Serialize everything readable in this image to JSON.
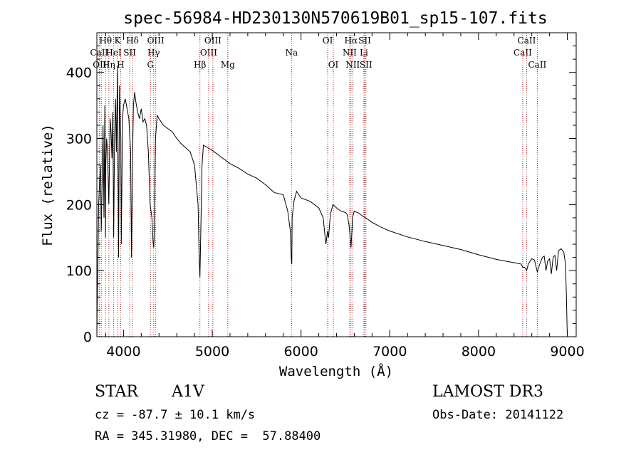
{
  "chart_data": {
    "type": "line",
    "title": "spec-56984-HD230130N570619B01_sp15-107.fits",
    "xlabel": "Wavelength (Å)",
    "ylabel": "Flux (relative)",
    "xlim": [
      3700,
      9100
    ],
    "ylim": [
      0,
      460
    ],
    "x_ticks": [
      4000,
      5000,
      6000,
      7000,
      8000,
      9000
    ],
    "y_ticks": [
      0,
      100,
      200,
      300,
      400
    ],
    "grid": false,
    "series": [
      {
        "name": "spectrum",
        "x": [
          3700,
          3705,
          3710,
          3715,
          3720,
          3730,
          3740,
          3750,
          3760,
          3770,
          3780,
          3790,
          3797,
          3800,
          3810,
          3820,
          3835,
          3850,
          3860,
          3870,
          3880,
          3889,
          3900,
          3910,
          3920,
          3933,
          3945,
          3955,
          3960,
          3970,
          3975,
          3990,
          4000,
          4020,
          4040,
          4060,
          4080,
          4090,
          4101,
          4112,
          4125,
          4140,
          4160,
          4180,
          4200,
          4220,
          4240,
          4260,
          4280,
          4300,
          4320,
          4335,
          4340,
          4345,
          4360,
          4380,
          4400,
          4450,
          4500,
          4550,
          4600,
          4650,
          4700,
          4750,
          4800,
          4840,
          4852,
          4861,
          4870,
          4885,
          4900,
          4950,
          5000,
          5100,
          5200,
          5300,
          5400,
          5500,
          5600,
          5700,
          5800,
          5850,
          5880,
          5890,
          5896,
          5900,
          5920,
          5950,
          6000,
          6100,
          6200,
          6250,
          6280,
          6300,
          6310,
          6330,
          6360,
          6400,
          6450,
          6500,
          6520,
          6540,
          6555,
          6563,
          6570,
          6580,
          6600,
          6650,
          6700,
          6750,
          6800,
          6900,
          7000,
          7200,
          7400,
          7600,
          7800,
          8000,
          8200,
          8400,
          8480,
          8498,
          8520,
          8542,
          8560,
          8600,
          8630,
          8662,
          8690,
          8720,
          8740,
          8760,
          8780,
          8800,
          8820,
          8840,
          8860,
          8880,
          8900,
          8930,
          8960,
          8980,
          8990,
          9000
        ],
        "values": [
          0,
          60,
          100,
          150,
          200,
          230,
          260,
          160,
          240,
          320,
          180,
          350,
          150,
          260,
          300,
          280,
          200,
          330,
          310,
          270,
          340,
          150,
          300,
          360,
          280,
          410,
          120,
          380,
          350,
          300,
          140,
          330,
          350,
          360,
          345,
          330,
          280,
          120,
          260,
          350,
          370,
          355,
          340,
          330,
          345,
          325,
          330,
          320,
          280,
          200,
          180,
          140,
          135,
          150,
          300,
          335,
          330,
          320,
          315,
          310,
          300,
          292,
          286,
          280,
          260,
          200,
          120,
          90,
          150,
          260,
          290,
          286,
          282,
          272,
          262,
          255,
          246,
          240,
          230,
          218,
          215,
          190,
          160,
          120,
          110,
          180,
          205,
          220,
          210,
          205,
          195,
          180,
          140,
          160,
          150,
          185,
          200,
          195,
          190,
          188,
          185,
          170,
          150,
          135,
          150,
          180,
          190,
          187,
          182,
          178,
          173,
          166,
          160,
          151,
          144,
          138,
          132,
          124,
          117,
          112,
          110,
          105,
          105,
          100,
          110,
          118,
          116,
          98,
          110,
          120,
          122,
          100,
          115,
          118,
          95,
          120,
          123,
          100,
          130,
          133,
          128,
          110,
          60,
          0
        ]
      }
    ],
    "line_markers": [
      {
        "label": "Hθ",
        "x": 3798,
        "row": 0
      },
      {
        "label": "K",
        "x": 3933,
        "row": 0
      },
      {
        "label": "Hδ",
        "x": 4101,
        "row": 0
      },
      {
        "label": "OIII",
        "x": 4363,
        "row": 0
      },
      {
        "label": "OIII",
        "x": 5007,
        "row": 0
      },
      {
        "label": "OI",
        "x": 6300,
        "row": 0
      },
      {
        "label": "Hα",
        "x": 6563,
        "row": 0
      },
      {
        "label": "SII",
        "x": 6717,
        "row": 0
      },
      {
        "label": "CaII",
        "x": 8542,
        "row": 0
      },
      {
        "label": "CaII",
        "x": 3727,
        "row": 1
      },
      {
        "label": "HeI",
        "x": 3889,
        "row": 1
      },
      {
        "label": "SII",
        "x": 4070,
        "row": 1
      },
      {
        "label": "Hγ",
        "x": 4340,
        "row": 1
      },
      {
        "label": "OIII",
        "x": 4959,
        "row": 1
      },
      {
        "label": "Na",
        "x": 5893,
        "row": 1
      },
      {
        "label": "NII",
        "x": 6548,
        "row": 1
      },
      {
        "label": "Li",
        "x": 6708,
        "row": 1
      },
      {
        "label": "CaII",
        "x": 8498,
        "row": 1
      },
      {
        "label": "OIII",
        "x": 3750,
        "row": 2
      },
      {
        "label": "Hη",
        "x": 3835,
        "row": 2
      },
      {
        "label": "H",
        "x": 3968,
        "row": 2
      },
      {
        "label": "G",
        "x": 4304,
        "row": 2
      },
      {
        "label": "Hβ",
        "x": 4861,
        "row": 2
      },
      {
        "label": "Mg",
        "x": 5175,
        "row": 2
      },
      {
        "label": "OI",
        "x": 6364,
        "row": 2
      },
      {
        "label": "NII",
        "x": 6583,
        "row": 2
      },
      {
        "label": "SII",
        "x": 6731,
        "row": 2
      },
      {
        "label": "CaII",
        "x": 8662,
        "row": 2
      }
    ],
    "marker_color": "#b22222"
  },
  "info": {
    "object_class": "STAR",
    "subclass": "A1V",
    "survey": "LAMOST DR3",
    "redshift": "cz = -87.7 ± 10.1 km/s",
    "obs_date": "Obs-Date: 20141122",
    "coords": "RA = 345.31980, DEC =  57.88400"
  }
}
